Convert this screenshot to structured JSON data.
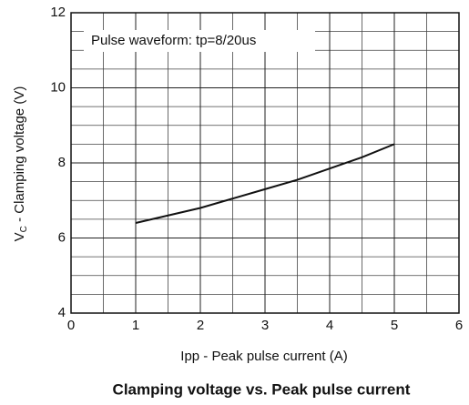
{
  "chart_data": {
    "type": "line",
    "title": "Clamping voltage vs. Peak pulse current",
    "xlabel": "Ipp - Peak pulse current (A)",
    "ylabel_symbol": "V",
    "ylabel_subscript": "C",
    "ylabel_text": " - Clamping voltage (V)",
    "annotation": "Pulse waveform: tp=8/20us",
    "x": [
      1,
      1.5,
      2,
      2.5,
      3,
      3.5,
      4,
      4.5,
      5
    ],
    "series": [
      {
        "color": "#111111",
        "values": [
          6.4,
          6.6,
          6.8,
          7.05,
          7.3,
          7.55,
          7.85,
          8.15,
          8.5
        ]
      }
    ],
    "xlim": [
      0,
      6
    ],
    "xticks": [
      0,
      1,
      2,
      3,
      4,
      5,
      6
    ],
    "ylim": [
      4,
      12
    ],
    "yticks": [
      4,
      6,
      8,
      10,
      12
    ],
    "grid": true
  }
}
